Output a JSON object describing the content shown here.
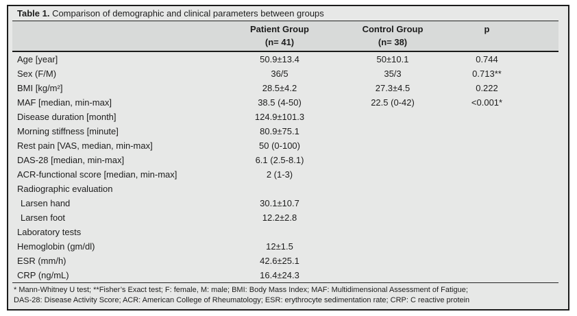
{
  "colors": {
    "table_background": "#e7e8e7",
    "header_band": "#d8dad9",
    "border": "#1b1b1b"
  },
  "table": {
    "title_label": "Table 1.",
    "title_text": " Comparison of demographic and clinical parameters between groups",
    "columns": {
      "patient": {
        "line1": "Patient Group",
        "line2": "(n= 41)"
      },
      "control": {
        "line1": "Control Group",
        "line2": "(n= 38)"
      },
      "p": {
        "line1": "p"
      }
    },
    "rows": [
      {
        "label": "Age [year]",
        "patient": "50.9±13.4",
        "control": "50±10.1",
        "p": "0.744"
      },
      {
        "label": "Sex (F/M)",
        "patient": "36/5",
        "control": "35/3",
        "p": "0.713**"
      },
      {
        "label": "BMI [kg/m²]",
        "patient": "28.5±4.2",
        "control": "27.3±4.5",
        "p": "0.222"
      },
      {
        "label": "MAF [median, min-max]",
        "patient": "38.5 (4-50)",
        "control": "22.5 (0-42)",
        "p": "<0.001*"
      },
      {
        "label": "Disease duration [month]",
        "patient": "124.9±101.3",
        "control": "",
        "p": ""
      },
      {
        "label": "Morning stiffness [minute]",
        "patient": "80.9±75.1",
        "control": "",
        "p": ""
      },
      {
        "label": "Rest pain [VAS, median, min-max]",
        "patient": "50 (0-100)",
        "control": "",
        "p": ""
      },
      {
        "label": "DAS-28 [median, min-max]",
        "patient": "6.1 (2.5-8.1)",
        "control": "",
        "p": ""
      },
      {
        "label": "ACR-functional score [median, min-max]",
        "patient": "2 (1-3)",
        "control": "",
        "p": ""
      },
      {
        "label": "Radiographic evaluation",
        "patient": "",
        "control": "",
        "p": ""
      },
      {
        "label": "Larsen hand",
        "patient": "30.1±10.7",
        "control": "",
        "p": ""
      },
      {
        "label": "Larsen foot",
        "patient": "12.2±2.8",
        "control": "",
        "p": ""
      },
      {
        "label": "Laboratory tests",
        "patient": "",
        "control": "",
        "p": ""
      },
      {
        "label": "Hemoglobin (gm/dl)",
        "patient": "12±1.5",
        "control": "",
        "p": ""
      },
      {
        "label": "ESR (mm/h)",
        "patient": "42.6±25.1",
        "control": "",
        "p": ""
      },
      {
        "label": "CRP (ng/mL)",
        "patient": "16.4±24.3",
        "control": "",
        "p": ""
      }
    ],
    "footnotes": [
      "* Mann-Whitney U test; **Fisher’s Exact test; F: female, M: male; BMI: Body Mass Index; MAF: Multidimensional Assessment of Fatigue;",
      "DAS-28: Disease Activity Score; ACR: American College of Rheumatology; ESR: erythrocyte sedimentation rate; CRP: C reactive protein"
    ]
  }
}
